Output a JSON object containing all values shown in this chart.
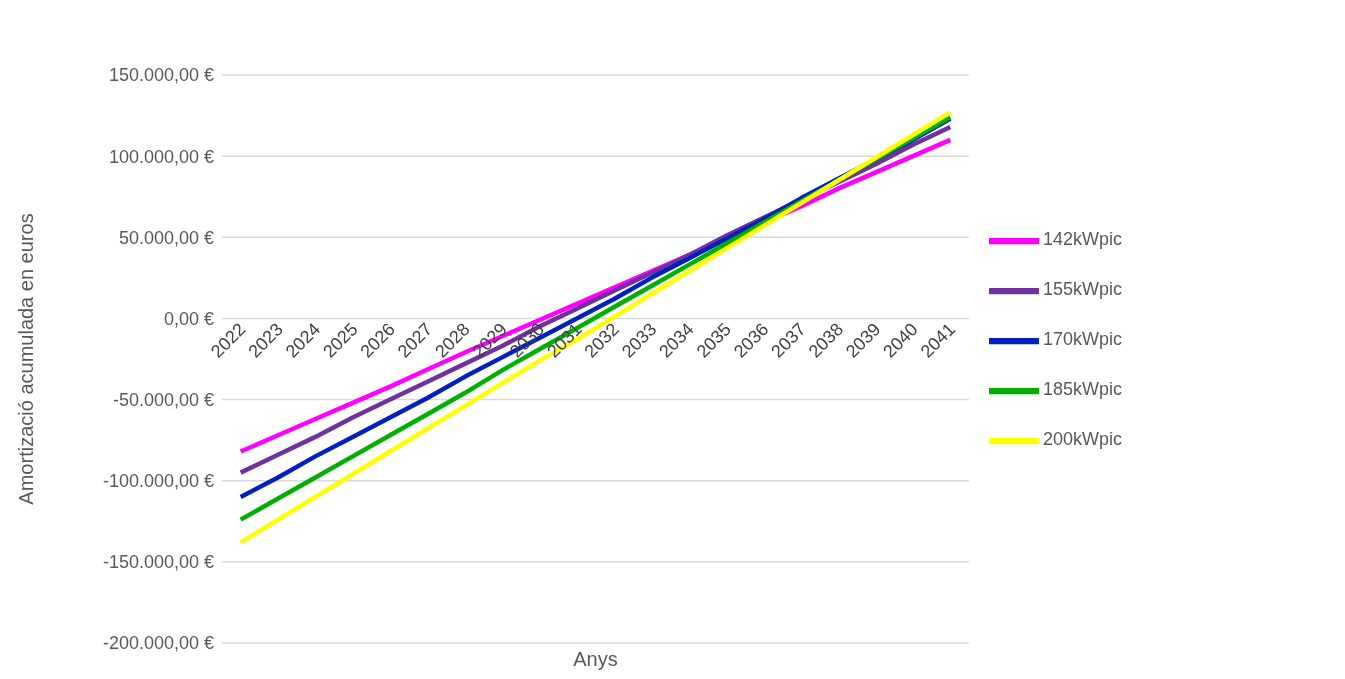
{
  "chart_data": {
    "type": "line",
    "xlabel": "Anys",
    "ylabel": "Amortizació acumulada en euros",
    "categories": [
      "2022",
      "2023",
      "2024",
      "2025",
      "2026",
      "2027",
      "2028",
      "2029",
      "2030",
      "2031",
      "2032",
      "2033",
      "2034",
      "2035",
      "2036",
      "2037",
      "2038",
      "2039",
      "2040",
      "2041"
    ],
    "series": [
      {
        "name": "142kWpic",
        "color": "#ff00ff",
        "values": [
          -82000,
          -72000,
          -62000,
          -52000,
          -42000,
          -31500,
          -21000,
          -11000,
          -1000,
          9000,
          19000,
          29000,
          39000,
          49000,
          59000,
          69000,
          80000,
          90000,
          100000,
          110000
        ]
      },
      {
        "name": "155kWpic",
        "color": "#7030a0",
        "values": [
          -95000,
          -84000,
          -73000,
          -61000,
          -50000,
          -39000,
          -28000,
          -17000,
          -5000,
          6000,
          17000,
          28000,
          39000,
          51000,
          62000,
          73000,
          84000,
          95000,
          107000,
          118000
        ]
      },
      {
        "name": "170kWpic",
        "color": "#0020c0",
        "values": [
          -110000,
          -98000,
          -85000,
          -73000,
          -61000,
          -49000,
          -36000,
          -24000,
          -12000,
          0,
          12000,
          25000,
          37000,
          49000,
          61000,
          74000,
          86000,
          98000,
          110000,
          123000
        ]
      },
      {
        "name": "185kWpic",
        "color": "#00b000",
        "values": [
          -124000,
          -111000,
          -98000,
          -85000,
          -72000,
          -59000,
          -46000,
          -32000,
          -19000,
          -6000,
          7000,
          20000,
          33000,
          46000,
          59000,
          72000,
          85000,
          98000,
          111000,
          124000
        ]
      },
      {
        "name": "200kWpic",
        "color": "#ffff00",
        "values": [
          -138000,
          -124000,
          -110000,
          -96000,
          -82000,
          -68000,
          -54000,
          -40000,
          -26000,
          -13000,
          1000,
          15000,
          29000,
          43000,
          57000,
          71000,
          85000,
          99000,
          113000,
          127000
        ]
      }
    ],
    "ylim": [
      -200000,
      150000
    ],
    "yticks": [
      {
        "value": -200000,
        "label": "-200.000,00 €"
      },
      {
        "value": -150000,
        "label": "-150.000,00 €"
      },
      {
        "value": -100000,
        "label": "-100.000,00 €"
      },
      {
        "value": -50000,
        "label": "-50.000,00 €"
      },
      {
        "value": 0,
        "label": "0,00 €"
      },
      {
        "value": 50000,
        "label": "50.000,00 €"
      },
      {
        "value": 100000,
        "label": "100.000,00 €"
      },
      {
        "value": 150000,
        "label": "150.000,00 €"
      }
    ],
    "grid": "y",
    "legend": "right",
    "marker": "none",
    "line_style": "solid"
  }
}
